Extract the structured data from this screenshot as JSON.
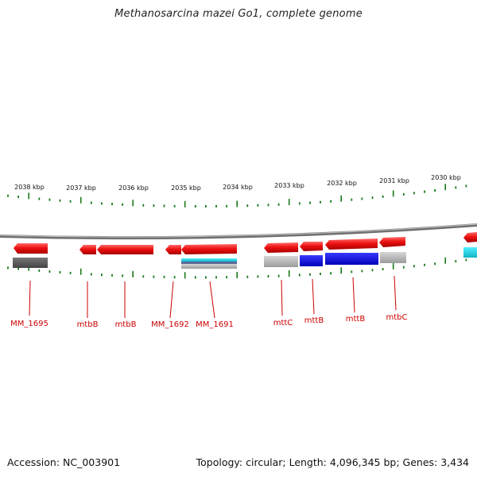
{
  "title": "Methanosarcina mazei Go1, complete genome",
  "footer": {
    "accession": "Accession: NC_003901",
    "summary": "Topology: circular; Length: 4,096,345 bp; Genes: 3,434"
  },
  "scale_ticks": [
    "2038 kbp",
    "2037 kbp",
    "2036 kbp",
    "2035 kbp",
    "2034 kbp",
    "2033 kbp",
    "2032 kbp",
    "2031 kbp",
    "2030 kbp"
  ],
  "gene_labels": [
    "MM_1695",
    "mtbB",
    "mtbB",
    "MM_1692",
    "MM_1691",
    "mttC",
    "mttB",
    "mttB",
    "mtbC"
  ],
  "colors": {
    "gene": "#ee1111",
    "backbone": "#8a8a8a",
    "tick": "#1a7a1a",
    "label": "#cc0000",
    "feature_dark": "#555555",
    "feature_light": "#b8b8b8",
    "feature_blue": "#1010dd",
    "feature_cyan": "#19c9d6"
  }
}
